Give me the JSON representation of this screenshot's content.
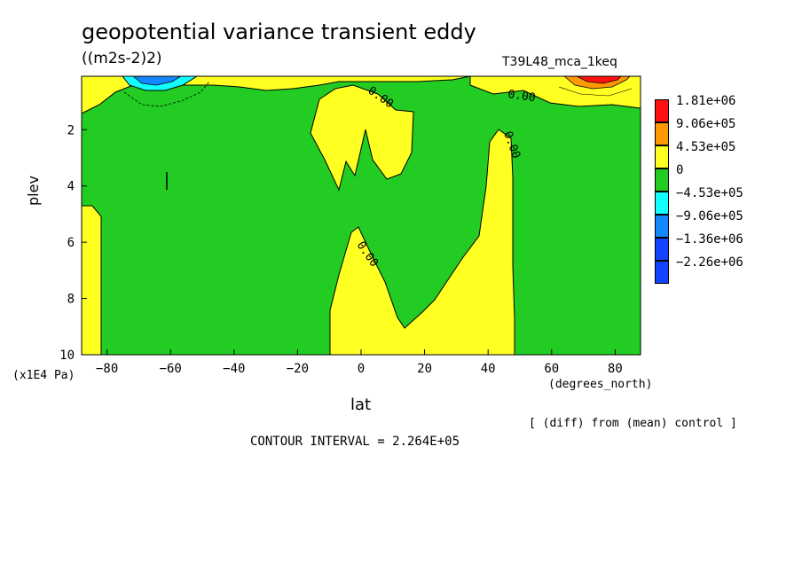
{
  "header": {
    "title": "geopotential variance transient eddy",
    "units": "((m2s-2)2)",
    "run_name": "T39L48_mca_1keq"
  },
  "footer": {
    "note": "[ (diff) from (mean) control ]",
    "contour_interval": "CONTOUR INTERVAL = 2.264E+05"
  },
  "chart_data": {
    "type": "contour",
    "xlabel": "lat",
    "x_unit": "(degrees_north)",
    "ylabel": "plev",
    "y_unit": "(x1E4 Pa)",
    "xlim": [
      -88,
      88
    ],
    "ylim": [
      10,
      0.1
    ],
    "x_ticks": [
      -80,
      -60,
      -40,
      -20,
      0,
      20,
      40,
      60,
      80
    ],
    "y_ticks": [
      2,
      4,
      6,
      8,
      10
    ],
    "contour_labels": [
      "0.00",
      "0.00",
      "0.00",
      "0.00"
    ],
    "colors": {
      "green": "#22cc22",
      "yellow": "#ffff22",
      "orange": "#ff9900",
      "red": "#ff1111",
      "cyan": "#11ffff",
      "blue": "#1188ff",
      "dark_blue": "#1144ff"
    },
    "legend": [
      {
        "label": "1.81e+06",
        "color": "#ff1111"
      },
      {
        "label": "9.06e+05",
        "color": "#ff9900"
      },
      {
        "label": "4.53e+05",
        "color": "#ffff22"
      },
      {
        "label": "0",
        "color": "#22cc22"
      },
      {
        "label": "−4.53e+05",
        "color": "#11ffff"
      },
      {
        "label": "−9.06e+05",
        "color": "#1188ff"
      },
      {
        "label": "−1.36e+06",
        "color": "#1144ff"
      },
      {
        "label": "−2.26e+06",
        "color": "#1144ff"
      }
    ]
  }
}
